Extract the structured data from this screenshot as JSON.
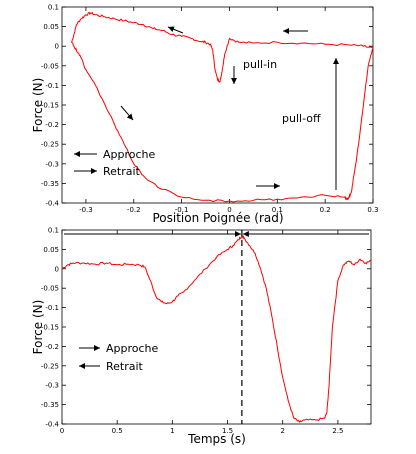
{
  "chart_data": [
    {
      "type": "line",
      "xlabel": "Position Poignée (rad)",
      "ylabel": "Force (N)",
      "xlim": [
        -0.35,
        0.3
      ],
      "ylim": [
        -0.4,
        0.1
      ],
      "xticks": [
        -0.3,
        -0.2,
        -0.1,
        0,
        0.1,
        0.2,
        0.3
      ],
      "xtick_labels": [
        "-0.3",
        "-0.2",
        "-0.1",
        "0",
        "0.1",
        "0.2",
        "0.3"
      ],
      "yticks": [
        0.1,
        0.05,
        0,
        -0.05,
        -0.1,
        -0.15,
        -0.2,
        -0.25,
        -0.3,
        -0.35,
        -0.4
      ],
      "ytick_labels": [
        "0.1",
        "0.05",
        "0",
        "-0.05",
        "-0.1",
        "-0.15",
        "-0.2",
        "-0.25",
        "-0.3",
        "-0.35",
        "-0.4"
      ],
      "series": [
        {
          "color": "#ff0000",
          "x": [
            -0.33,
            -0.325,
            -0.32,
            -0.31,
            -0.3,
            -0.29,
            -0.28,
            -0.26,
            -0.24,
            -0.22,
            -0.2,
            -0.18,
            -0.16,
            -0.14,
            -0.12,
            -0.1,
            -0.08,
            -0.06,
            -0.05,
            -0.04,
            -0.035,
            -0.03,
            -0.025,
            -0.02,
            -0.018,
            -0.015,
            -0.01,
            0,
            0.02,
            0.05,
            0.1,
            0.15,
            0.2,
            0.25,
            0.28,
            0.3,
            0.29,
            0.28,
            0.27,
            0.26,
            0.255,
            0.25,
            0.245,
            0.24,
            0.2,
            0.15,
            0.1,
            0.05,
            0,
            -0.05,
            -0.1,
            -0.15,
            -0.18,
            -0.2,
            -0.22,
            -0.24,
            -0.26,
            -0.28,
            -0.3,
            -0.31,
            -0.32,
            -0.325,
            -0.33
          ],
          "y": [
            0.01,
            0.03,
            0.055,
            0.07,
            0.08,
            0.085,
            0.08,
            0.075,
            0.07,
            0.065,
            0.06,
            0.055,
            0.045,
            0.04,
            0.03,
            0.025,
            0.02,
            0.012,
            0.01,
            0.005,
            -0.01,
            -0.06,
            -0.085,
            -0.09,
            -0.08,
            -0.06,
            -0.02,
            0.02,
            0.01,
            0.008,
            0.01,
            0.008,
            0.005,
            0.003,
            0.0,
            -0.005,
            -0.05,
            -0.15,
            -0.25,
            -0.33,
            -0.37,
            -0.385,
            -0.39,
            -0.385,
            -0.38,
            -0.385,
            -0.39,
            -0.393,
            -0.395,
            -0.393,
            -0.385,
            -0.36,
            -0.33,
            -0.3,
            -0.25,
            -0.2,
            -0.15,
            -0.1,
            -0.06,
            -0.03,
            -0.01,
            0.0,
            0.01
          ]
        }
      ],
      "annotations": [
        "pull-in",
        "pull-off"
      ],
      "legend": [
        {
          "label": "Approche",
          "arrow": "left"
        },
        {
          "label": "Retrait",
          "arrow": "right"
        }
      ]
    },
    {
      "type": "line",
      "xlabel": "Temps (s)",
      "ylabel": "Force (N)",
      "xlim": [
        0,
        2.8
      ],
      "ylim": [
        -0.4,
        0.1
      ],
      "xticks": [
        0,
        0.5,
        1,
        1.5,
        2,
        2.5
      ],
      "xtick_labels": [
        "0",
        "0.5",
        "1",
        "1.5",
        "2",
        "2.5"
      ],
      "yticks": [
        0.1,
        0.05,
        0,
        -0.05,
        -0.1,
        -0.15,
        -0.2,
        -0.25,
        -0.3,
        -0.35,
        -0.4
      ],
      "ytick_labels": [
        "0.1",
        "0.05",
        "0",
        "-0.05",
        "-0.1",
        "-0.15",
        "-0.2",
        "-0.25",
        "-0.3",
        "-0.35",
        "-0.4"
      ],
      "series": [
        {
          "color": "#ff0000",
          "x": [
            0,
            0.05,
            0.1,
            0.2,
            0.3,
            0.4,
            0.5,
            0.6,
            0.7,
            0.75,
            0.8,
            0.85,
            0.9,
            0.95,
            1.0,
            1.05,
            1.1,
            1.2,
            1.3,
            1.4,
            1.5,
            1.55,
            1.6,
            1.63,
            1.65,
            1.7,
            1.75,
            1.8,
            1.85,
            1.9,
            1.95,
            2.0,
            2.05,
            2.1,
            2.15,
            2.2,
            2.3,
            2.38,
            2.4,
            2.42,
            2.45,
            2.5,
            2.55,
            2.6,
            2.65,
            2.7,
            2.75,
            2.8
          ],
          "y": [
            0.0,
            0.01,
            0.015,
            0.015,
            0.012,
            0.015,
            0.01,
            0.012,
            0.01,
            0.005,
            -0.03,
            -0.07,
            -0.085,
            -0.09,
            -0.085,
            -0.07,
            -0.06,
            -0.03,
            0.0,
            0.03,
            0.05,
            0.06,
            0.075,
            0.085,
            0.08,
            0.06,
            0.04,
            0.0,
            -0.05,
            -0.12,
            -0.2,
            -0.28,
            -0.34,
            -0.385,
            -0.395,
            -0.39,
            -0.39,
            -0.385,
            -0.37,
            -0.3,
            -0.15,
            -0.03,
            0.01,
            0.02,
            0.01,
            0.025,
            0.015,
            0.02
          ]
        }
      ],
      "marker_x": 1.63,
      "legend": [
        {
          "label": "Approche",
          "arrow": "right"
        },
        {
          "label": "Retrait",
          "arrow": "left"
        }
      ]
    }
  ]
}
